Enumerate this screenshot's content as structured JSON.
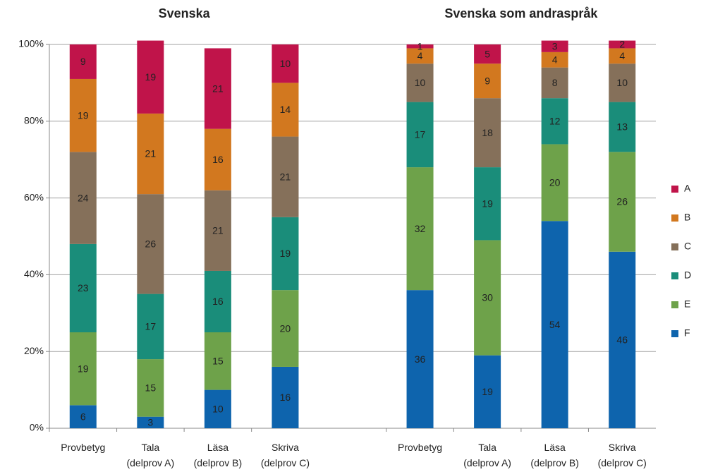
{
  "chart_data": {
    "type": "bar",
    "stacked": true,
    "groups": [
      {
        "title": "Svenska",
        "categories": [
          "Provbetyg",
          "Tala\n(delprov A)",
          "Läsa\n(delprov B)",
          "Skriva\n(delprov C)"
        ]
      },
      {
        "title": "Svenska som andraspråk",
        "categories": [
          "Provbetyg",
          "Tala\n(delprov A)",
          "Läsa\n(delprov B)",
          "Skriva\n(delprov C)"
        ]
      }
    ],
    "series": [
      {
        "name": "A",
        "color": "#c0144a",
        "values": [
          9,
          19,
          21,
          10,
          1,
          5,
          3,
          2
        ]
      },
      {
        "name": "B",
        "color": "#d2781f",
        "values": [
          19,
          21,
          16,
          14,
          4,
          9,
          4,
          4
        ]
      },
      {
        "name": "C",
        "color": "#85705a",
        "values": [
          24,
          26,
          21,
          21,
          10,
          18,
          8,
          10
        ]
      },
      {
        "name": "D",
        "color": "#1a8d7a",
        "values": [
          23,
          17,
          16,
          19,
          17,
          19,
          12,
          13
        ]
      },
      {
        "name": "E",
        "color": "#6ea24a",
        "values": [
          19,
          15,
          15,
          20,
          32,
          30,
          20,
          26
        ]
      },
      {
        "name": "F",
        "color": "#0e64ad",
        "values": [
          6,
          3,
          10,
          16,
          36,
          19,
          54,
          46
        ]
      }
    ],
    "ylim": [
      0,
      100
    ],
    "yticks": [
      {
        "value": 0,
        "label": "0%"
      },
      {
        "value": 20,
        "label": "20%"
      },
      {
        "value": 40,
        "label": "40%"
      },
      {
        "value": 60,
        "label": "60%"
      },
      {
        "value": 80,
        "label": "80%"
      },
      {
        "value": 100,
        "label": "100%"
      }
    ],
    "grid": true,
    "legend": "right"
  }
}
